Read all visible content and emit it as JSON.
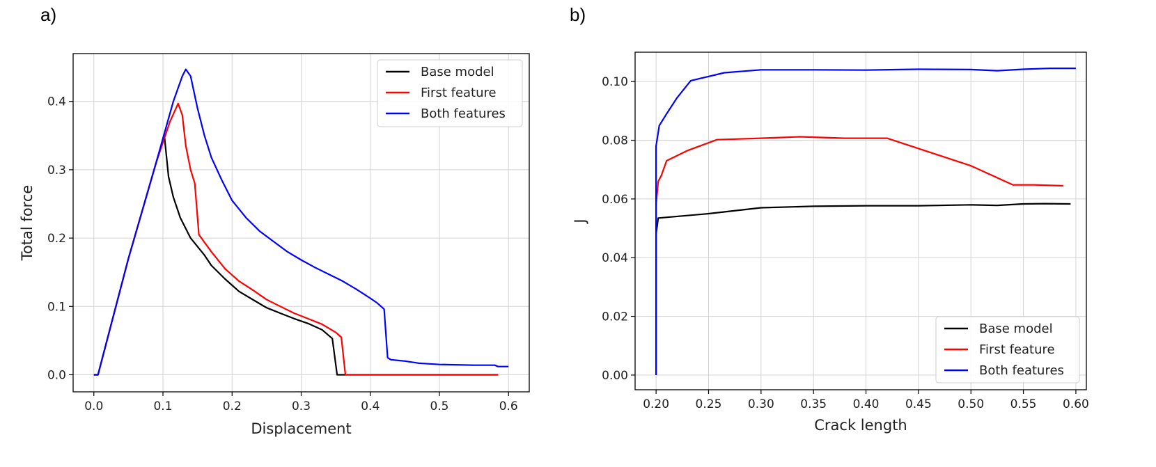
{
  "panel_labels": [
    "a)",
    "b)"
  ],
  "chart_data": [
    {
      "type": "line",
      "xlabel": "Displacement",
      "ylabel": "Total force",
      "xlim": [
        -0.03,
        0.63
      ],
      "ylim": [
        -0.025,
        0.47
      ],
      "xticks": [
        0.0,
        0.1,
        0.2,
        0.3,
        0.4,
        0.5,
        0.6
      ],
      "xtick_labels": [
        "0.0",
        "0.1",
        "0.2",
        "0.3",
        "0.4",
        "0.5",
        "0.6"
      ],
      "yticks": [
        0.0,
        0.1,
        0.2,
        0.3,
        0.4
      ],
      "ytick_labels": [
        "0.0",
        "0.1",
        "0.2",
        "0.3",
        "0.4"
      ],
      "grid": true,
      "legend_position": "top-right",
      "series": [
        {
          "name": "Base model",
          "color": "#000000",
          "points": [
            [
              0.0,
              0.0
            ],
            [
              0.006,
              0.0
            ],
            [
              0.05,
              0.17
            ],
            [
              0.09,
              0.31
            ],
            [
              0.102,
              0.35
            ],
            [
              0.108,
              0.29
            ],
            [
              0.115,
              0.26
            ],
            [
              0.125,
              0.23
            ],
            [
              0.14,
              0.2
            ],
            [
              0.16,
              0.175
            ],
            [
              0.17,
              0.16
            ],
            [
              0.19,
              0.14
            ],
            [
              0.21,
              0.122
            ],
            [
              0.23,
              0.11
            ],
            [
              0.25,
              0.098
            ],
            [
              0.27,
              0.09
            ],
            [
              0.29,
              0.082
            ],
            [
              0.31,
              0.075
            ],
            [
              0.33,
              0.066
            ],
            [
              0.345,
              0.053
            ],
            [
              0.352,
              0.0
            ],
            [
              0.37,
              0.0
            ],
            [
              0.585,
              0.0
            ]
          ]
        },
        {
          "name": "First feature",
          "color": "#ff0000",
          "points": [
            [
              0.0,
              0.0
            ],
            [
              0.006,
              0.0
            ],
            [
              0.05,
              0.17
            ],
            [
              0.09,
              0.31
            ],
            [
              0.11,
              0.37
            ],
            [
              0.122,
              0.397
            ],
            [
              0.128,
              0.38
            ],
            [
              0.133,
              0.335
            ],
            [
              0.14,
              0.3
            ],
            [
              0.146,
              0.28
            ],
            [
              0.152,
              0.205
            ],
            [
              0.17,
              0.18
            ],
            [
              0.19,
              0.155
            ],
            [
              0.21,
              0.137
            ],
            [
              0.23,
              0.124
            ],
            [
              0.25,
              0.11
            ],
            [
              0.27,
              0.1
            ],
            [
              0.29,
              0.09
            ],
            [
              0.31,
              0.082
            ],
            [
              0.33,
              0.074
            ],
            [
              0.35,
              0.062
            ],
            [
              0.358,
              0.055
            ],
            [
              0.364,
              0.0
            ],
            [
              0.585,
              0.0
            ]
          ]
        },
        {
          "name": "Both features",
          "color": "#0000ff",
          "points": [
            [
              0.0,
              0.0
            ],
            [
              0.006,
              0.0
            ],
            [
              0.05,
              0.17
            ],
            [
              0.09,
              0.31
            ],
            [
              0.115,
              0.4
            ],
            [
              0.128,
              0.437
            ],
            [
              0.133,
              0.447
            ],
            [
              0.14,
              0.437
            ],
            [
              0.15,
              0.39
            ],
            [
              0.16,
              0.35
            ],
            [
              0.17,
              0.318
            ],
            [
              0.185,
              0.285
            ],
            [
              0.2,
              0.255
            ],
            [
              0.22,
              0.23
            ],
            [
              0.24,
              0.21
            ],
            [
              0.26,
              0.195
            ],
            [
              0.28,
              0.18
            ],
            [
              0.3,
              0.168
            ],
            [
              0.32,
              0.157
            ],
            [
              0.34,
              0.147
            ],
            [
              0.36,
              0.137
            ],
            [
              0.38,
              0.125
            ],
            [
              0.4,
              0.112
            ],
            [
              0.41,
              0.105
            ],
            [
              0.42,
              0.096
            ],
            [
              0.425,
              0.025
            ],
            [
              0.43,
              0.022
            ],
            [
              0.45,
              0.02
            ],
            [
              0.47,
              0.017
            ],
            [
              0.5,
              0.015
            ],
            [
              0.55,
              0.014
            ],
            [
              0.58,
              0.014
            ],
            [
              0.585,
              0.012
            ],
            [
              0.6,
              0.012
            ]
          ]
        }
      ]
    },
    {
      "type": "line",
      "xlabel": "Crack length",
      "ylabel": "J",
      "xlim": [
        0.18,
        0.61
      ],
      "ylim": [
        -0.005,
        0.11
      ],
      "xticks": [
        0.2,
        0.25,
        0.3,
        0.35,
        0.4,
        0.45,
        0.5,
        0.55,
        0.6
      ],
      "xtick_labels": [
        "0.20",
        "0.25",
        "0.30",
        "0.35",
        "0.40",
        "0.45",
        "0.50",
        "0.55",
        "0.60"
      ],
      "yticks": [
        0.0,
        0.02,
        0.04,
        0.06,
        0.08,
        0.1
      ],
      "ytick_labels": [
        "0.00",
        "0.02",
        "0.04",
        "0.06",
        "0.08",
        "0.10"
      ],
      "grid": true,
      "legend_position": "bottom-right",
      "series": [
        {
          "name": "Base model",
          "color": "#000000",
          "points": [
            [
              0.2,
              0.0
            ],
            [
              0.2,
              0.048
            ],
            [
              0.202,
              0.0535
            ],
            [
              0.25,
              0.055
            ],
            [
              0.3,
              0.057
            ],
            [
              0.35,
              0.0575
            ],
            [
              0.4,
              0.0577
            ],
            [
              0.45,
              0.0577
            ],
            [
              0.5,
              0.058
            ],
            [
              0.525,
              0.0578
            ],
            [
              0.55,
              0.0583
            ],
            [
              0.57,
              0.0584
            ],
            [
              0.595,
              0.0583
            ]
          ]
        },
        {
          "name": "First feature",
          "color": "#ff0000",
          "points": [
            [
              0.2,
              0.0
            ],
            [
              0.2,
              0.058
            ],
            [
              0.202,
              0.066
            ],
            [
              0.205,
              0.068
            ],
            [
              0.21,
              0.073
            ],
            [
              0.23,
              0.0765
            ],
            [
              0.258,
              0.0802
            ],
            [
              0.3,
              0.0807
            ],
            [
              0.337,
              0.0812
            ],
            [
              0.38,
              0.0807
            ],
            [
              0.42,
              0.0807
            ],
            [
              0.5,
              0.0713
            ],
            [
              0.54,
              0.0648
            ],
            [
              0.56,
              0.0648
            ],
            [
              0.588,
              0.0645
            ]
          ]
        },
        {
          "name": "Both features",
          "color": "#0000ff",
          "points": [
            [
              0.2,
              0.0
            ],
            [
              0.2,
              0.078
            ],
            [
              0.203,
              0.085
            ],
            [
              0.21,
              0.089
            ],
            [
              0.22,
              0.0945
            ],
            [
              0.233,
              0.1003
            ],
            [
              0.265,
              0.103
            ],
            [
              0.3,
              0.104
            ],
            [
              0.35,
              0.104
            ],
            [
              0.4,
              0.1039
            ],
            [
              0.45,
              0.1042
            ],
            [
              0.5,
              0.1041
            ],
            [
              0.525,
              0.1037
            ],
            [
              0.55,
              0.1042
            ],
            [
              0.575,
              0.1045
            ],
            [
              0.6,
              0.1045
            ]
          ]
        }
      ]
    }
  ]
}
